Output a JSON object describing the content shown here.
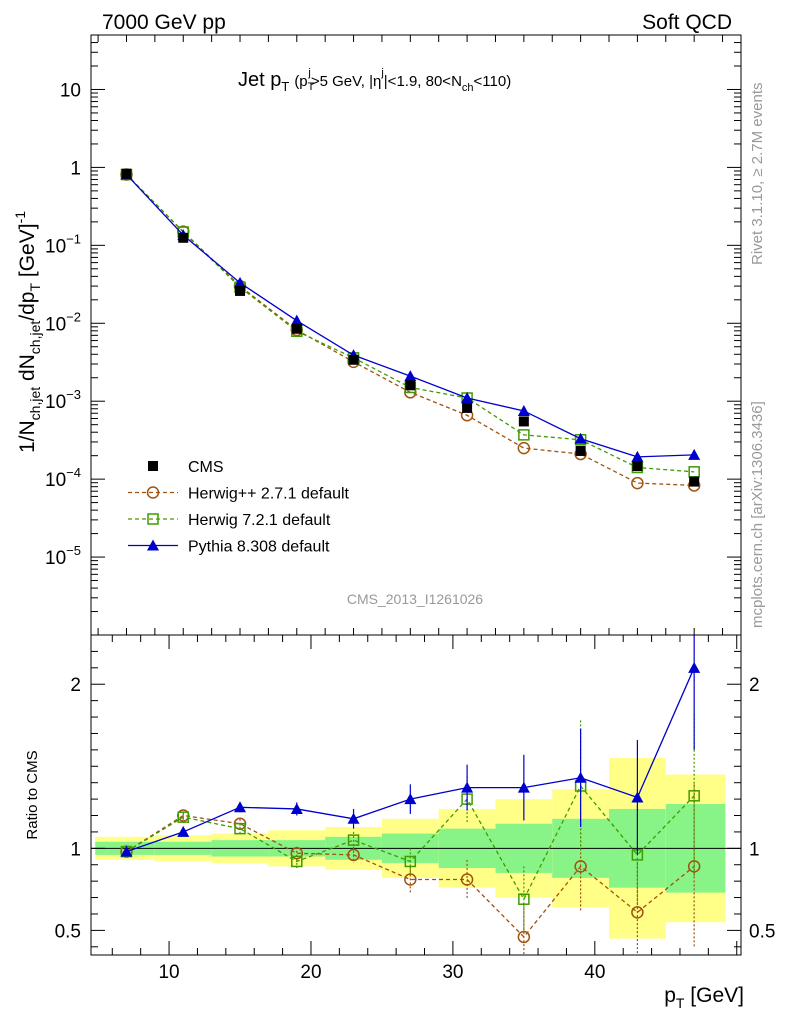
{
  "header": {
    "left": "7000 GeV pp",
    "right": "Soft QCD"
  },
  "side_labels": {
    "rivet": "Rivet 3.1.10, ≥ 2.7M events",
    "mcplots": "mcplots.cern.ch [arXiv:1306.3436]"
  },
  "watermark": "CMS_2013_I1261026",
  "colors": {
    "cms": "#000000",
    "herwigpp": "#a0520f",
    "herwig7": "#3f9b00",
    "pythia": "#0000cc",
    "band_green": "#88f488",
    "band_yellow": "#ffff88"
  },
  "chart_data": {
    "type": "line",
    "title": {
      "main": "Jet p",
      "main_sub": "T",
      "cut1": "(p",
      "cut1_sub": "T",
      "cut1_sup": "j",
      "cut1_rest": ">5 GeV, |η",
      "cut2_sup": "j",
      "cut2_rest": "|<1.9, 80<N",
      "cut3_sub": "ch",
      "cut3_rest": "<110)"
    },
    "xlabel": {
      "main": "p",
      "sub": "T",
      "rest": " [GeV]"
    },
    "ylabel": {
      "p1": "1/N",
      "s1": "ch,jet",
      "p2": " dN",
      "s2": "ch,jet",
      "p3": "/dp",
      "s3": "T",
      "p4": " [GeV]",
      "sup": "-1"
    },
    "ratio_ylabel": "Ratio to CMS",
    "xlim": [
      4.5,
      50.3
    ],
    "ylim_log": [
      1e-06,
      50
    ],
    "ratio_ylim": [
      0.35,
      2.3
    ],
    "x_ticks": [
      "10",
      "20",
      "30",
      "40"
    ],
    "x_tick_values": [
      10,
      20,
      30,
      40
    ],
    "y_ticks": [
      {
        "v": 10,
        "b": "10",
        "e": ""
      },
      {
        "v": 1,
        "b": "1",
        "e": ""
      },
      {
        "v": 0.1,
        "b": "10",
        "e": "−1"
      },
      {
        "v": 0.01,
        "b": "10",
        "e": "−2"
      },
      {
        "v": 0.001,
        "b": "10",
        "e": "−3"
      },
      {
        "v": 0.0001,
        "b": "10",
        "e": "−4"
      },
      {
        "v": 1e-05,
        "b": "10",
        "e": "−5"
      }
    ],
    "ratio_ticks": [
      "0.5",
      "1",
      "2"
    ],
    "ratio_tick_values": [
      0.5,
      1,
      2
    ],
    "x": [
      7,
      11,
      15,
      19,
      23,
      27,
      31,
      35,
      39,
      43,
      47
    ],
    "series": [
      {
        "name": "CMS",
        "key": "cms",
        "values": [
          0.83,
          0.125,
          0.026,
          0.0085,
          0.0034,
          0.0016,
          0.00082,
          0.00055,
          0.00023,
          0.000147,
          9.3e-05
        ],
        "band_green": [
          0.04,
          0.04,
          0.05,
          0.05,
          0.07,
          0.09,
          0.12,
          0.15,
          0.18,
          0.24,
          0.27
        ],
        "band_yellow": [
          0.07,
          0.08,
          0.09,
          0.11,
          0.13,
          0.18,
          0.24,
          0.3,
          0.36,
          0.55,
          0.45
        ],
        "ratio": [
          1,
          1,
          1,
          1,
          1,
          1,
          1,
          1,
          1,
          1,
          1
        ]
      },
      {
        "name": "Herwig++ 2.7.1 default",
        "key": "herwigpp",
        "values": [
          0.81,
          0.15,
          0.03,
          0.0082,
          0.0032,
          0.0013,
          0.00066,
          0.00025,
          0.00021,
          8.9e-05,
          8.3e-05
        ],
        "ratio": [
          0.98,
          1.2,
          1.15,
          0.97,
          0.96,
          0.81,
          0.81,
          0.46,
          0.89,
          0.61,
          0.89
        ],
        "ratio_err": [
          0.02,
          0.02,
          0.03,
          0.04,
          0.05,
          0.08,
          0.12,
          0.2,
          0.28,
          0.3,
          0.5
        ]
      },
      {
        "name": "Herwig 7.2.1 default",
        "key": "herwig7",
        "values": [
          0.81,
          0.148,
          0.029,
          0.0079,
          0.0036,
          0.0015,
          0.0011,
          0.00037,
          0.00032,
          0.000141,
          0.000124
        ],
        "ratio": [
          0.98,
          1.19,
          1.12,
          0.92,
          1.05,
          0.92,
          1.3,
          0.69,
          1.38,
          0.96,
          1.32
        ],
        "ratio_err": [
          0.02,
          0.02,
          0.03,
          0.04,
          0.05,
          0.08,
          0.14,
          0.2,
          0.4,
          0.3,
          0.5
        ]
      },
      {
        "name": "Pythia 8.308 default",
        "key": "pythia",
        "values": [
          0.81,
          0.135,
          0.033,
          0.0108,
          0.0039,
          0.0021,
          0.0011,
          0.00075,
          0.00033,
          0.000193,
          0.000205
        ],
        "ratio": [
          0.98,
          1.1,
          1.25,
          1.24,
          1.18,
          1.3,
          1.37,
          1.37,
          1.43,
          1.31,
          2.1
        ],
        "ratio_err": [
          0.02,
          0.02,
          0.03,
          0.04,
          0.06,
          0.09,
          0.14,
          0.2,
          0.3,
          0.35,
          0.5
        ]
      }
    ],
    "legend": [
      "CMS",
      "Herwig++ 2.7.1 default",
      "Herwig 7.2.1 default",
      "Pythia 8.308 default"
    ]
  }
}
